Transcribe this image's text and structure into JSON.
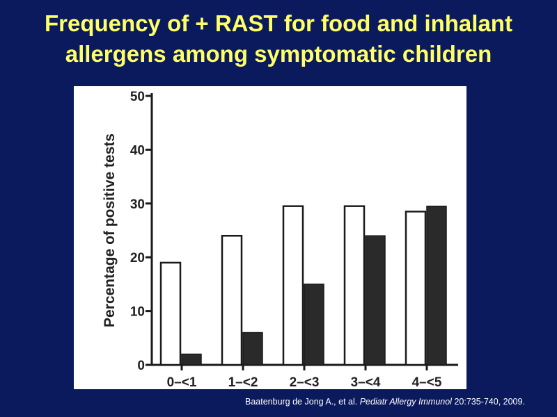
{
  "slide": {
    "title_line1": "Frequency of + RAST for food and inhalant",
    "title_line2": "allergens among symptomatic children"
  },
  "citation": {
    "authors": "Baatenburg de Jong A., et al.",
    "journal": "Pediatr Allergy Immunol",
    "details": "20:735-740, 2009."
  },
  "colors": {
    "background": "#0a1a5c",
    "title": "#ffff66",
    "panel": "#ffffff",
    "open_bar": "#ffffff",
    "filled_bar": "#2a2a2a",
    "axis": "#1a1a1a"
  },
  "chart_data": {
    "type": "bar",
    "title": "",
    "xlabel": "",
    "ylabel": "Percentage of positive tests",
    "categories": [
      "0–<1",
      "1–<2",
      "2–<3",
      "3–<4",
      "4–<5"
    ],
    "series": [
      {
        "style": "open",
        "values": [
          19,
          24,
          29.5,
          29.5,
          28.5
        ]
      },
      {
        "style": "filled",
        "values": [
          2,
          6,
          15,
          24,
          29.5
        ]
      }
    ],
    "ylim": [
      0,
      50
    ],
    "yticks": [
      0,
      10,
      20,
      30,
      40,
      50
    ],
    "grid": false,
    "legend": "none"
  }
}
